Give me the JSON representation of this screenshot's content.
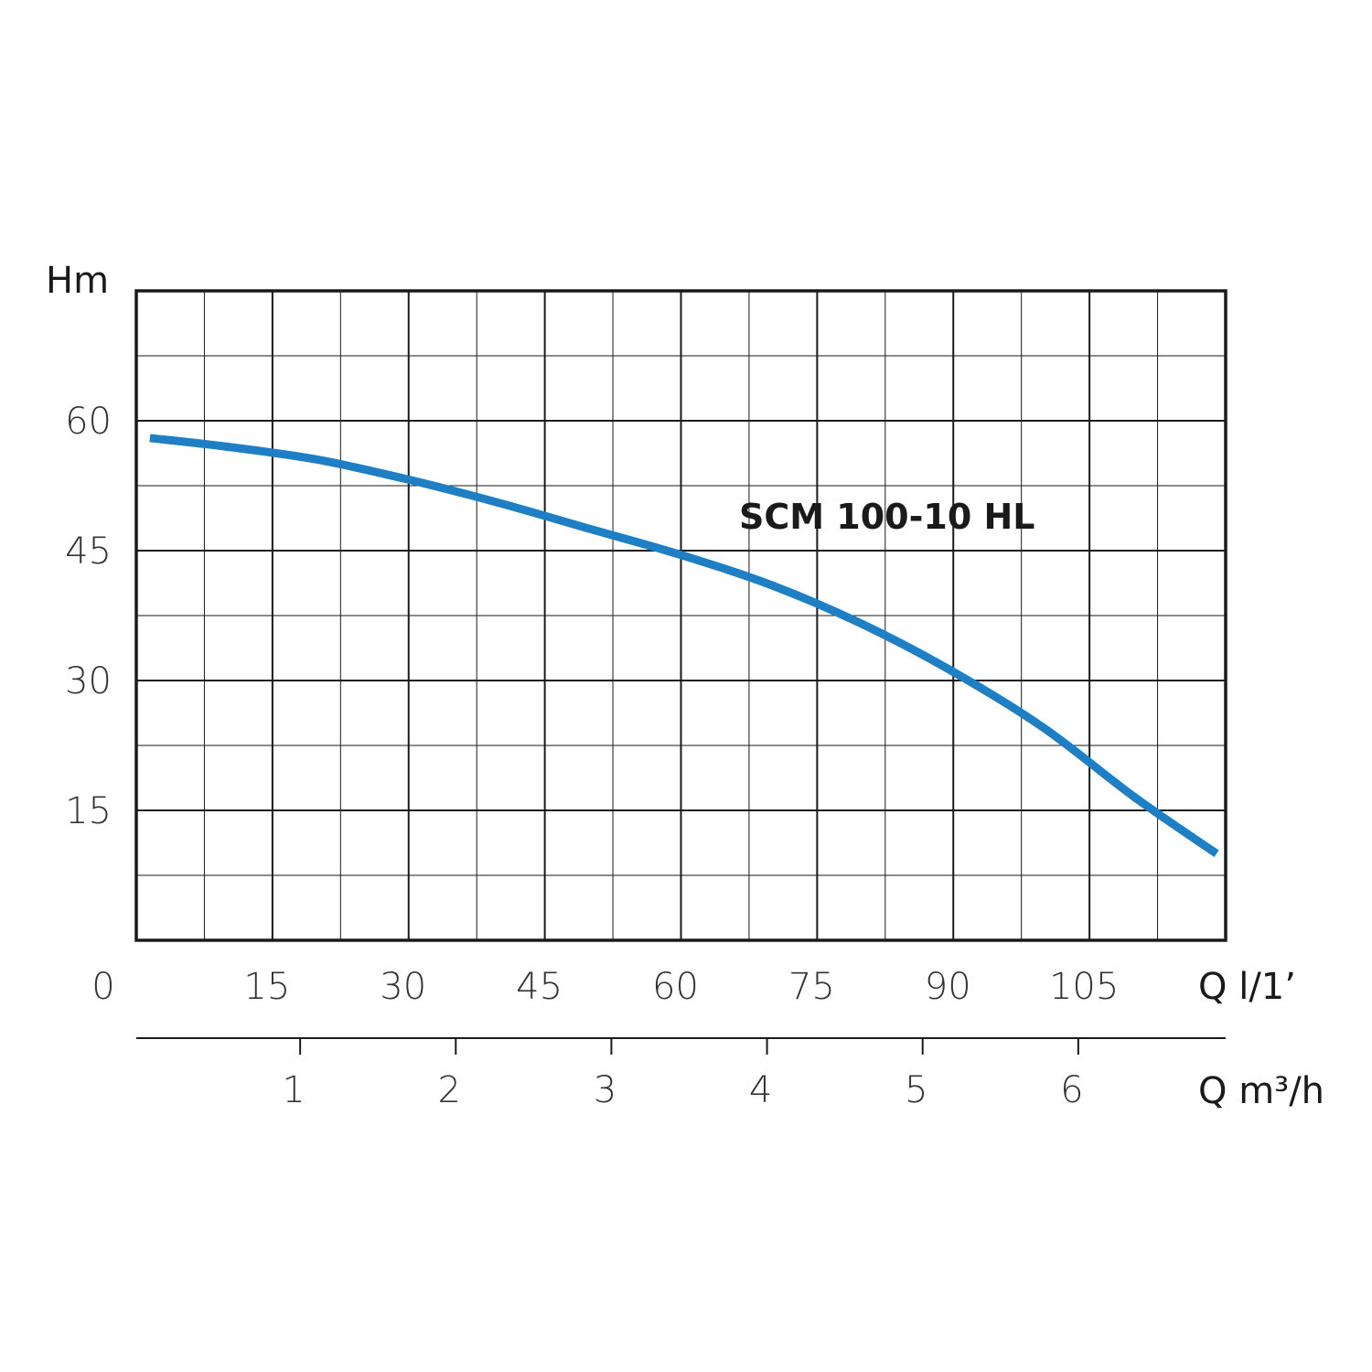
{
  "chart_data": {
    "type": "line",
    "ylabel": "Hm",
    "xlabel": "Q l/1’",
    "xlabel_secondary": "Q m³/h",
    "series_label": "SCM 100-10 HL",
    "xlim": [
      0,
      120
    ],
    "ylim": [
      0,
      75
    ],
    "x_ticks": [
      15,
      30,
      45,
      60,
      75,
      90,
      105
    ],
    "y_ticks": [
      15,
      30,
      45,
      60
    ],
    "origin_label": "0",
    "x_minor_step": 7.5,
    "y_minor_step": 7.5,
    "secondary_x_ticks": [
      1,
      2,
      3,
      4,
      5,
      6
    ],
    "secondary_xlim": [
      0,
      7
    ],
    "grid": true,
    "series_color": "#1f7fc4",
    "series": [
      {
        "x": [
          1.5,
          10,
          20,
          30,
          40,
          50,
          60,
          70,
          80,
          90,
          100,
          110,
          119
        ],
        "y": [
          58,
          57,
          55.5,
          53.2,
          50.5,
          47.5,
          44.5,
          41.0,
          36.5,
          31.0,
          24.5,
          16.5,
          10.0
        ]
      }
    ]
  }
}
